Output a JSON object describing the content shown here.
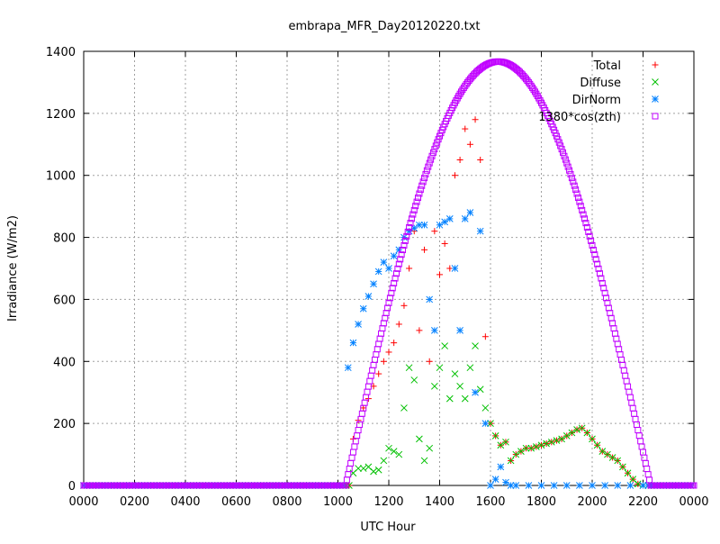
{
  "chart_data": {
    "type": "scatter",
    "title": "embrapa_MFR_Day20120220.txt",
    "xlabel": "UTC Hour",
    "ylabel": "Irradiance (W/m2)",
    "xlim": [
      0,
      24
    ],
    "ylim": [
      0,
      1400
    ],
    "x_tick_values": [
      0,
      2,
      4,
      6,
      8,
      10,
      12,
      14,
      16,
      18,
      20,
      22,
      24
    ],
    "x_tick_labels": [
      "0000",
      "0200",
      "0400",
      "0600",
      "0800",
      "1000",
      "1200",
      "1400",
      "1600",
      "1800",
      "2000",
      "2200",
      "0000"
    ],
    "y_ticks": [
      0,
      200,
      400,
      600,
      800,
      1000,
      1200,
      1400
    ],
    "grid": true,
    "legend_position": "top-right",
    "series": [
      {
        "name": "Total",
        "marker": "plus",
        "color": "#ff0000",
        "x": [
          10.6,
          10.8,
          11.0,
          11.2,
          11.4,
          11.6,
          11.8,
          12.0,
          12.2,
          12.4,
          12.6,
          12.8,
          13.0,
          13.2,
          13.4,
          13.6,
          13.8,
          14.0,
          14.2,
          14.4,
          14.6,
          14.8,
          15.0,
          15.2,
          15.4,
          15.6,
          15.8,
          16.0,
          16.2,
          16.4,
          16.6,
          16.8,
          17.0,
          17.2,
          17.4,
          17.6,
          17.8,
          18.0,
          18.2,
          18.4,
          18.6,
          18.8,
          19.0,
          19.2,
          19.4,
          19.6,
          19.8,
          20.0,
          20.2,
          20.4,
          20.6,
          20.8,
          21.0,
          21.2,
          21.4,
          21.6,
          21.8,
          22.0
        ],
        "y": [
          150,
          210,
          250,
          280,
          320,
          360,
          400,
          430,
          460,
          520,
          580,
          700,
          820,
          500,
          760,
          400,
          820,
          680,
          780,
          700,
          1000,
          1050,
          1150,
          1100,
          1180,
          1050,
          480,
          200,
          160,
          130,
          140,
          80,
          100,
          110,
          120,
          120,
          125,
          130,
          135,
          140,
          145,
          150,
          160,
          170,
          180,
          185,
          170,
          150,
          130,
          110,
          100,
          90,
          80,
          60,
          40,
          20,
          5,
          0
        ]
      },
      {
        "name": "Diffuse",
        "marker": "cross",
        "color": "#00c000",
        "x": [
          10.6,
          10.8,
          11.0,
          11.2,
          11.4,
          11.6,
          11.8,
          12.0,
          12.2,
          12.4,
          12.6,
          12.8,
          13.0,
          13.2,
          13.4,
          13.6,
          13.8,
          14.0,
          14.2,
          14.4,
          14.6,
          14.8,
          15.0,
          15.2,
          15.4,
          15.6,
          15.8,
          16.0,
          16.2,
          16.4,
          16.6,
          16.8,
          17.0,
          17.2,
          17.4,
          17.6,
          17.8,
          18.0,
          18.2,
          18.4,
          18.6,
          18.8,
          19.0,
          19.2,
          19.4,
          19.6,
          19.8,
          20.0,
          20.2,
          20.4,
          20.6,
          20.8,
          21.0,
          21.2,
          21.4,
          21.6,
          21.8,
          22.0
        ],
        "y": [
          40,
          55,
          55,
          60,
          45,
          50,
          80,
          120,
          110,
          100,
          250,
          380,
          340,
          150,
          80,
          120,
          320,
          380,
          450,
          280,
          360,
          320,
          280,
          380,
          450,
          310,
          250,
          200,
          160,
          130,
          140,
          80,
          100,
          110,
          120,
          120,
          125,
          130,
          135,
          140,
          145,
          150,
          160,
          170,
          180,
          185,
          170,
          150,
          130,
          110,
          100,
          90,
          80,
          60,
          40,
          20,
          5,
          0
        ]
      },
      {
        "name": "DirNorm",
        "marker": "star",
        "color": "#0080ff",
        "x": [
          10.4,
          10.6,
          10.8,
          11.0,
          11.2,
          11.4,
          11.6,
          11.8,
          12.0,
          12.2,
          12.4,
          12.6,
          12.8,
          13.0,
          13.2,
          13.4,
          13.6,
          13.8,
          14.0,
          14.2,
          14.4,
          14.6,
          14.8,
          15.0,
          15.2,
          15.4,
          15.6,
          15.8,
          16.0,
          16.2,
          16.4,
          16.6,
          16.8,
          17.0,
          17.5,
          18.0,
          18.5,
          19.0,
          19.5,
          20.0,
          20.5,
          21.0,
          21.5,
          22.0
        ],
        "y": [
          380,
          460,
          520,
          570,
          610,
          650,
          690,
          720,
          700,
          740,
          760,
          800,
          820,
          830,
          840,
          840,
          600,
          500,
          840,
          850,
          860,
          700,
          500,
          860,
          880,
          300,
          820,
          200,
          0,
          20,
          60,
          10,
          0,
          0,
          0,
          0,
          0,
          0,
          0,
          0,
          0,
          0,
          0,
          0
        ]
      },
      {
        "name": "1380*cos(zth)",
        "marker": "square",
        "color": "#c000ff",
        "curve": {
          "peak_x": 16.3,
          "peak_y": 1367,
          "zero_left_x": 10.3,
          "zero_right_x": 22.3
        }
      }
    ]
  }
}
